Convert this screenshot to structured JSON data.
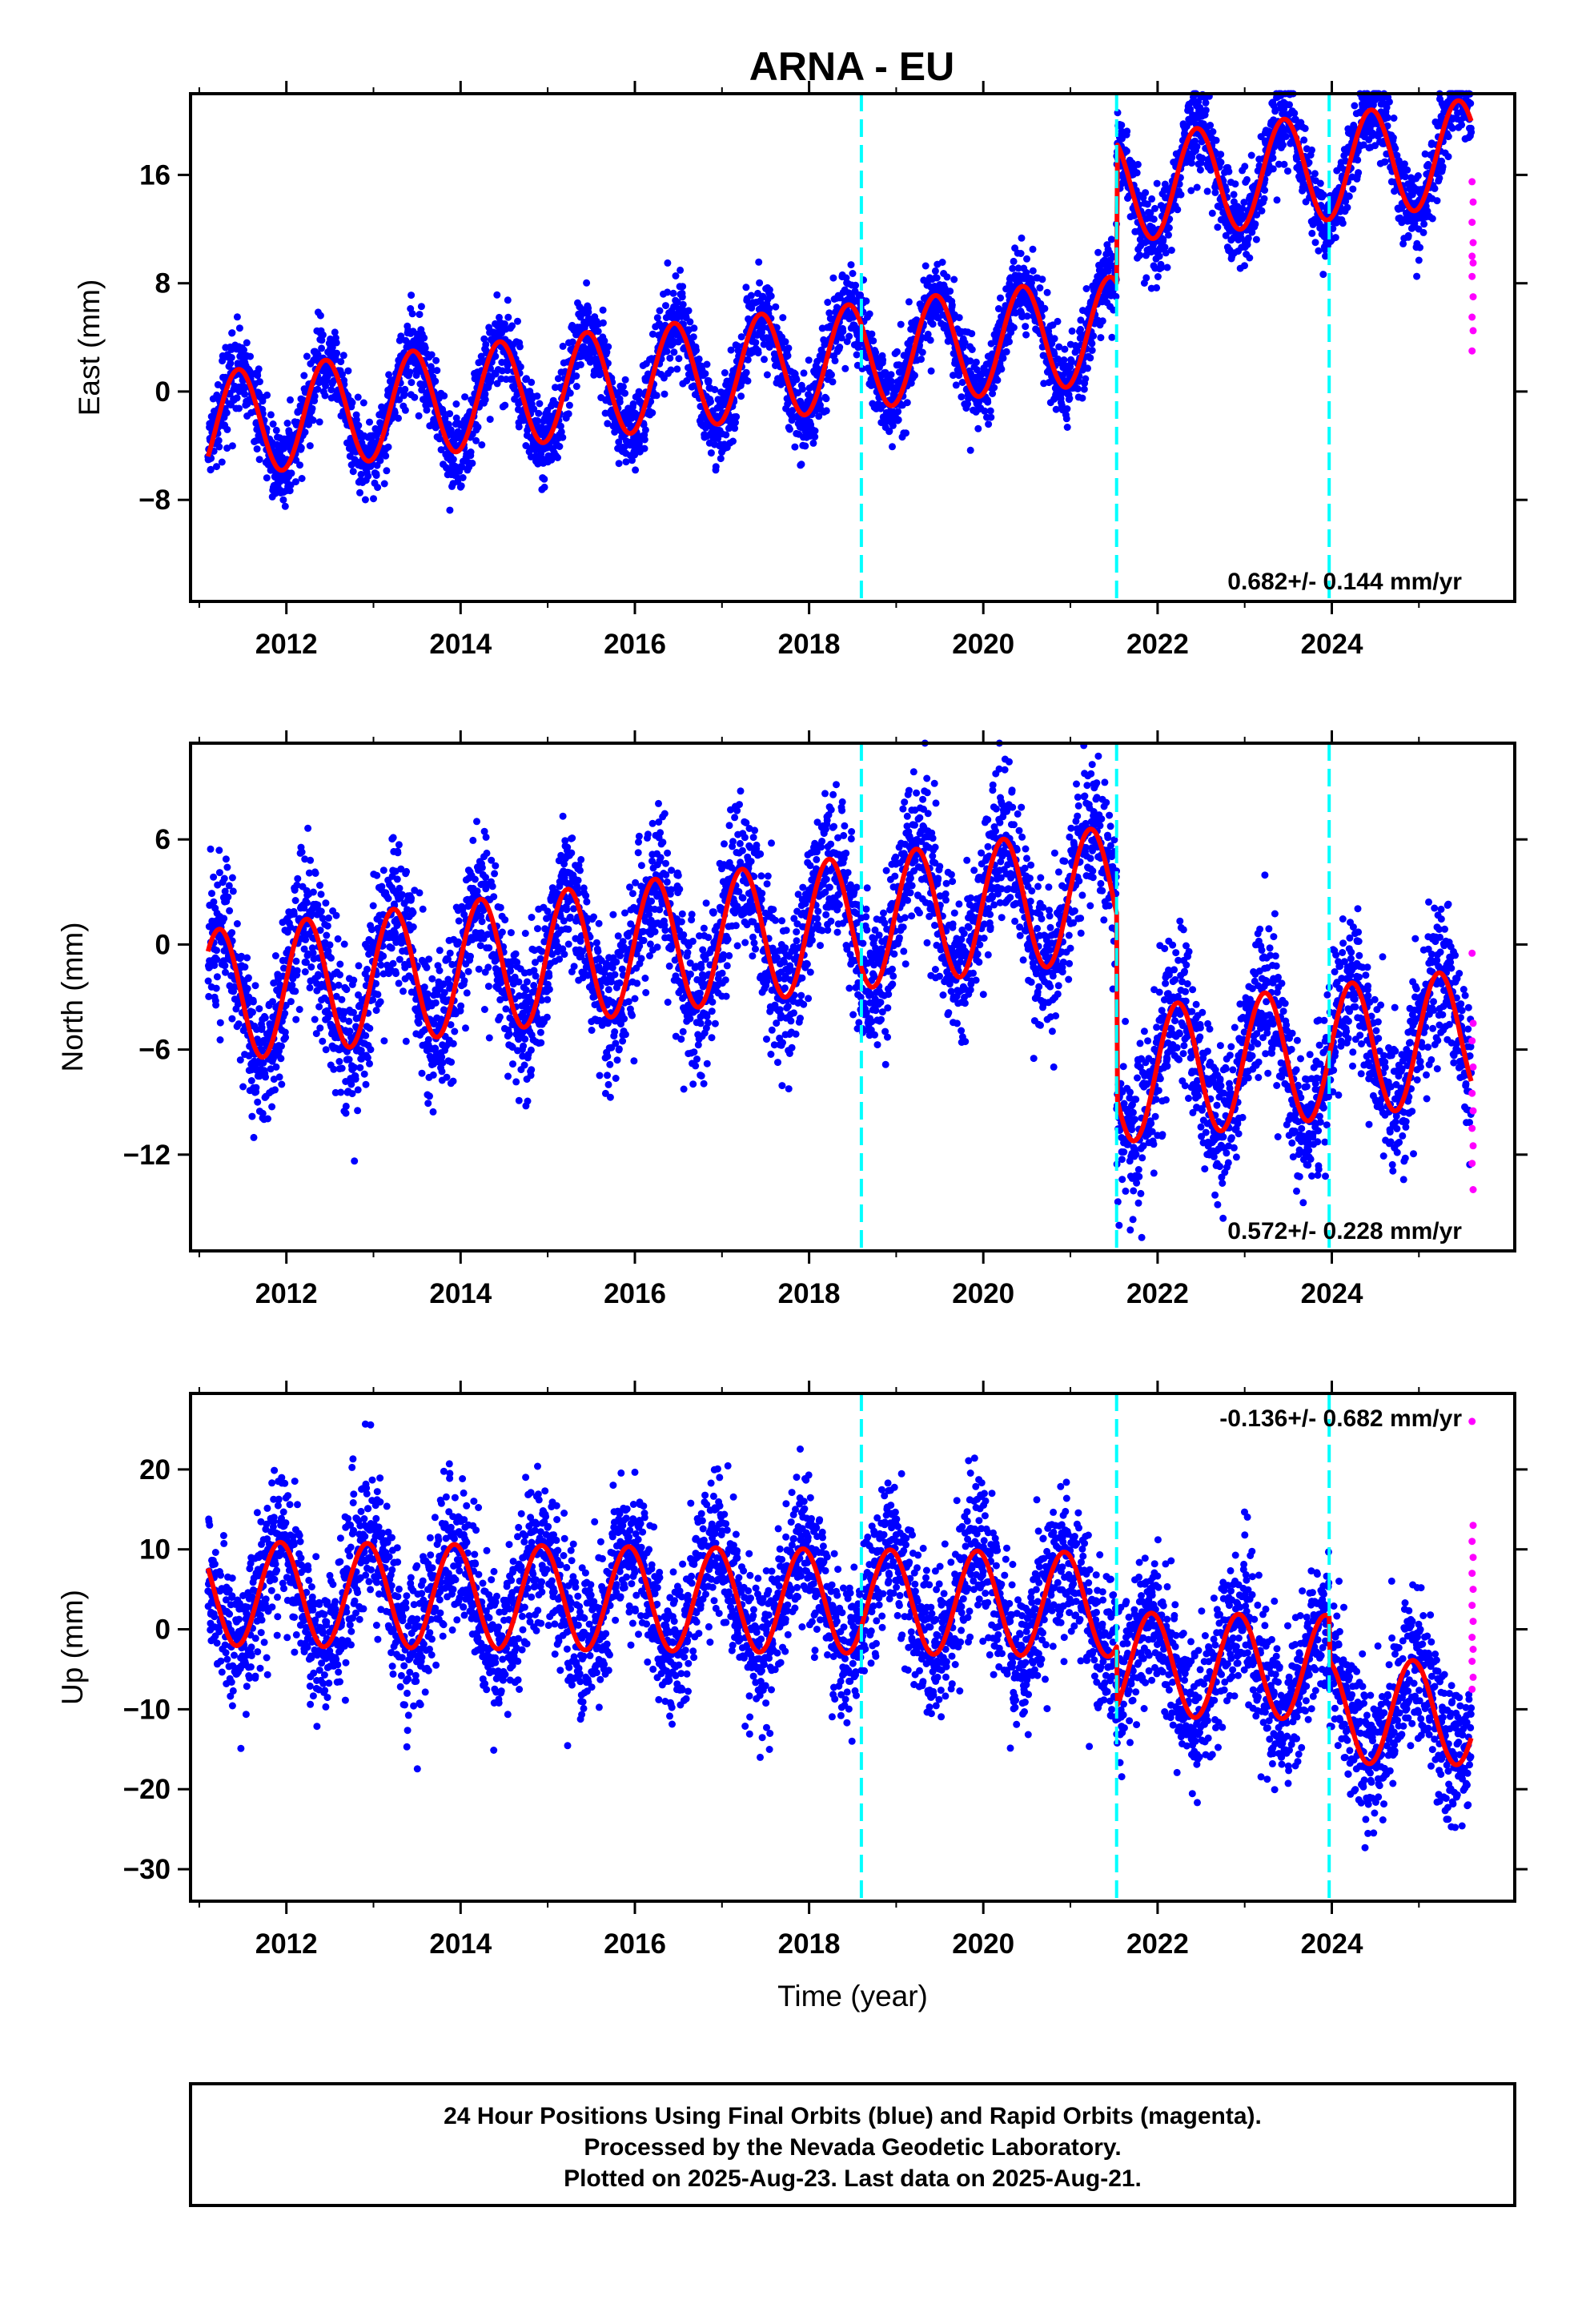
{
  "title": "ARNA - EU",
  "xlabel": "Time (year)",
  "footer": {
    "line1": "24 Hour Positions Using Final Orbits (blue) and Rapid Orbits (magenta).",
    "line2": "Processed by the Nevada Geodetic Laboratory.",
    "line3": "Plotted on 2025-Aug-23. Last data on 2025-Aug-21."
  },
  "colors": {
    "final": "#0000ff",
    "rapid": "#ff00ff",
    "model": "#ff0000",
    "events": "#00ffff"
  },
  "chart_data": [
    {
      "type": "scatter",
      "component": "East",
      "ylabel": "East (mm)",
      "xlim": [
        2010.9,
        2026.1
      ],
      "ylim": [
        -15.5,
        22
      ],
      "xticks": [
        2012,
        2014,
        2016,
        2018,
        2020,
        2022,
        2024
      ],
      "xtick_labels": [
        "2012",
        "2014",
        "2016",
        "2018",
        "2020",
        "2022",
        "2024"
      ],
      "yticks": [
        -8,
        0,
        8,
        16
      ],
      "ytick_labels": [
        "−8",
        "0",
        "8",
        "16"
      ],
      "rate_label": "0.682+/- 0.144 mm/yr",
      "rate_position": "bottom-right",
      "event_lines": [
        2018.6,
        2021.53,
        2023.97
      ],
      "model": {
        "start": 2011.1,
        "end": 2025.6,
        "offset": -2.5,
        "rate": 0.682,
        "amp": 3.9,
        "phase": 0.2,
        "step_time": 2021.53,
        "step": 10.3
      },
      "rapid_y": [
        15.5,
        14,
        12.5,
        11,
        10,
        9.5,
        8.5,
        7,
        5.5,
        4.5,
        3
      ],
      "series": [
        {
          "name": "Final Orbits",
          "color": "blue"
        },
        {
          "name": "Rapid Orbits",
          "color": "magenta"
        }
      ]
    },
    {
      "type": "scatter",
      "component": "North",
      "ylabel": "North (mm)",
      "xlim": [
        2010.9,
        2026.1
      ],
      "ylim": [
        -17.5,
        11.5
      ],
      "xticks": [
        2012,
        2014,
        2016,
        2018,
        2020,
        2022,
        2024
      ],
      "xtick_labels": [
        "2012",
        "2014",
        "2016",
        "2018",
        "2020",
        "2022",
        "2024"
      ],
      "yticks": [
        -12,
        -6,
        0,
        6
      ],
      "ytick_labels": [
        "−12",
        "−6",
        "0",
        "6"
      ],
      "rate_label": "0.572+/- 0.228 mm/yr",
      "rate_position": "bottom-right",
      "event_lines": [
        2018.6,
        2021.53,
        2023.97
      ],
      "model": {
        "start": 2011.1,
        "end": 2025.6,
        "offset": -3.0,
        "rate": 0.572,
        "amp": 3.8,
        "phase": 0.98,
        "step_time": 2021.53,
        "step": -10.5
      },
      "rapid_y": [
        -0.5,
        -4.5,
        -5.5,
        -7,
        -8.5,
        -9.5,
        -10.5,
        -11.5,
        -12.5,
        -14
      ],
      "series": [
        {
          "name": "Final Orbits",
          "color": "blue"
        },
        {
          "name": "Rapid Orbits",
          "color": "magenta"
        }
      ]
    },
    {
      "type": "scatter",
      "component": "Up",
      "ylabel": "Up (mm)",
      "xlim": [
        2010.9,
        2026.1
      ],
      "ylim": [
        -34,
        29.5
      ],
      "xticks": [
        2012,
        2014,
        2016,
        2018,
        2020,
        2022,
        2024
      ],
      "xtick_labels": [
        "2012",
        "2014",
        "2016",
        "2018",
        "2020",
        "2022",
        "2024"
      ],
      "yticks": [
        -30,
        -20,
        -10,
        0,
        10,
        20
      ],
      "ytick_labels": [
        "−30",
        "−20",
        "−10",
        "0",
        "10",
        "20"
      ],
      "rate_label": "-0.136+/- 0.682 mm/yr",
      "rate_position": "top-right",
      "event_lines": [
        2018.6,
        2021.53,
        2023.97
      ],
      "model": {
        "start": 2011.1,
        "end": 2025.6,
        "offset": 4.5,
        "rate": -0.136,
        "amp": 6.5,
        "phase": 0.68,
        "step_time": 2021.53,
        "step": -7.5,
        "step2_time": 2023.97,
        "step2": -5.5
      },
      "rapid_y": [
        26,
        13,
        11,
        9,
        7,
        5,
        3,
        1,
        -1,
        -2.5,
        -4,
        -6,
        -7.5
      ],
      "series": [
        {
          "name": "Final Orbits",
          "color": "blue"
        },
        {
          "name": "Rapid Orbits",
          "color": "magenta"
        }
      ]
    }
  ]
}
